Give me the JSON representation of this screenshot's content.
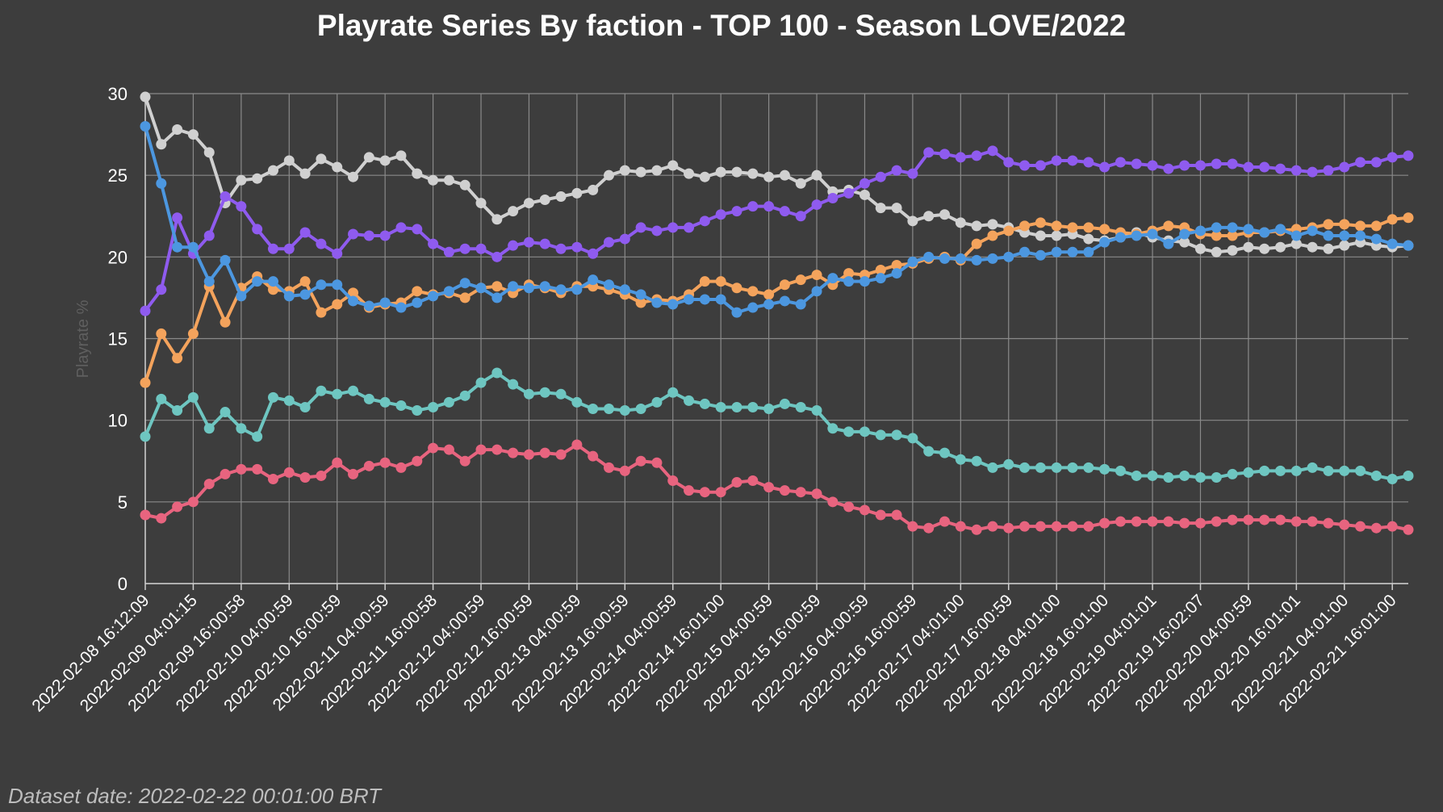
{
  "chart_data": {
    "type": "line",
    "title": "Playrate Series By faction - TOP 100 - Season LOVE/2022",
    "ylabel": "Playrate %",
    "xlabel": "",
    "ylim": [
      0,
      30
    ],
    "yticks": [
      0,
      5,
      10,
      15,
      20,
      25,
      30
    ],
    "point_count": 80,
    "x_tick_labels": [
      "2022-02-08 16:12:09",
      "2022-02-09 04:01:15",
      "2022-02-09 16:00:58",
      "2022-02-10 04:00:59",
      "2022-02-10 16:00:59",
      "2022-02-11 04:00:59",
      "2022-02-11 16:00:58",
      "2022-02-12 04:00:59",
      "2022-02-12 16:00:59",
      "2022-02-13 04:00:59",
      "2022-02-13 16:00:59",
      "2022-02-14 04:00:59",
      "2022-02-14 16:01:00",
      "2022-02-15 04:00:59",
      "2022-02-15 16:00:59",
      "2022-02-16 04:00:59",
      "2022-02-16 16:00:59",
      "2022-02-17 04:01:00",
      "2022-02-17 16:00:59",
      "2022-02-18 04:01:00",
      "2022-02-18 16:01:00",
      "2022-02-19 04:01:01",
      "2022-02-19 16:02:07",
      "2022-02-20 04:00:59",
      "2022-02-20 16:01:01",
      "2022-02-21 04:01:00",
      "2022-02-21 16:01:00"
    ],
    "x_tick_indices": [
      0,
      3,
      6,
      9,
      12,
      15,
      18,
      21,
      24,
      27,
      30,
      33,
      36,
      39,
      42,
      45,
      48,
      51,
      54,
      57,
      60,
      63,
      66,
      69,
      72,
      75,
      78
    ],
    "grid": true,
    "series": [
      {
        "name": "Gray",
        "color": "#d0d0d0",
        "values": [
          29.8,
          26.9,
          27.8,
          27.5,
          26.4,
          23.3,
          24.7,
          24.8,
          25.3,
          25.9,
          25.1,
          26.0,
          25.5,
          24.9,
          26.1,
          25.9,
          26.2,
          25.1,
          24.7,
          24.7,
          24.4,
          23.3,
          22.3,
          22.8,
          23.3,
          23.5,
          23.7,
          23.9,
          24.1,
          25.0,
          25.3,
          25.2,
          25.3,
          25.6,
          25.1,
          24.9,
          25.2,
          25.2,
          25.1,
          24.9,
          25.0,
          24.5,
          25.0,
          24.0,
          24.1,
          23.8,
          23.0,
          23.0,
          22.2,
          22.5,
          22.6,
          22.1,
          21.9,
          22.0,
          21.8,
          21.5,
          21.3,
          21.3,
          21.4,
          21.1,
          21.0,
          21.2,
          21.5,
          21.2,
          21.0,
          20.9,
          20.5,
          20.3,
          20.4,
          20.6,
          20.5,
          20.6,
          20.8,
          20.6,
          20.5,
          20.7,
          20.9,
          20.7,
          20.6,
          20.7
        ]
      },
      {
        "name": "Purple",
        "color": "#8f5bef",
        "values": [
          16.7,
          18.0,
          22.4,
          20.2,
          21.3,
          23.7,
          23.1,
          21.7,
          20.5,
          20.5,
          21.5,
          20.8,
          20.2,
          21.4,
          21.3,
          21.3,
          21.8,
          21.7,
          20.8,
          20.3,
          20.5,
          20.5,
          20.0,
          20.7,
          20.9,
          20.8,
          20.5,
          20.6,
          20.2,
          20.9,
          21.1,
          21.8,
          21.6,
          21.8,
          21.8,
          22.2,
          22.6,
          22.8,
          23.1,
          23.1,
          22.8,
          22.5,
          23.2,
          23.6,
          23.9,
          24.5,
          24.9,
          25.3,
          25.1,
          26.4,
          26.3,
          26.1,
          26.2,
          26.5,
          25.8,
          25.6,
          25.6,
          25.9,
          25.9,
          25.8,
          25.5,
          25.8,
          25.7,
          25.6,
          25.4,
          25.6,
          25.6,
          25.7,
          25.7,
          25.5,
          25.5,
          25.4,
          25.3,
          25.2,
          25.3,
          25.5,
          25.8,
          25.8,
          26.1,
          26.2
        ]
      },
      {
        "name": "Orange",
        "color": "#f4a35c",
        "values": [
          12.3,
          15.3,
          13.8,
          15.3,
          18.2,
          16.0,
          18.1,
          18.8,
          18.0,
          17.9,
          18.5,
          16.6,
          17.1,
          17.8,
          16.9,
          17.1,
          17.2,
          17.9,
          17.7,
          17.8,
          17.5,
          18.1,
          18.2,
          17.8,
          18.3,
          18.1,
          17.8,
          18.2,
          18.2,
          18.0,
          17.7,
          17.2,
          17.4,
          17.3,
          17.7,
          18.5,
          18.5,
          18.1,
          17.9,
          17.7,
          18.3,
          18.6,
          18.9,
          18.3,
          19.0,
          18.9,
          19.2,
          19.5,
          19.6,
          19.9,
          20.0,
          19.8,
          20.8,
          21.3,
          21.6,
          21.9,
          22.1,
          21.9,
          21.8,
          21.8,
          21.7,
          21.5,
          21.4,
          21.6,
          21.9,
          21.8,
          21.4,
          21.3,
          21.3,
          21.5,
          21.5,
          21.6,
          21.7,
          21.8,
          22.0,
          22.0,
          21.9,
          21.9,
          22.3,
          22.4
        ]
      },
      {
        "name": "Blue",
        "color": "#4c97e0",
        "values": [
          28.0,
          24.5,
          20.6,
          20.6,
          18.5,
          19.8,
          17.6,
          18.5,
          18.5,
          17.6,
          17.7,
          18.3,
          18.3,
          17.3,
          17.0,
          17.2,
          16.9,
          17.2,
          17.6,
          17.9,
          18.4,
          18.1,
          17.5,
          18.2,
          18.1,
          18.2,
          18.0,
          18.0,
          18.6,
          18.3,
          18.0,
          17.7,
          17.2,
          17.1,
          17.4,
          17.4,
          17.4,
          16.6,
          16.9,
          17.1,
          17.3,
          17.1,
          17.9,
          18.7,
          18.5,
          18.5,
          18.7,
          19.0,
          19.7,
          20.0,
          19.9,
          19.9,
          19.8,
          19.9,
          20.0,
          20.3,
          20.1,
          20.3,
          20.3,
          20.3,
          20.9,
          21.2,
          21.3,
          21.4,
          20.8,
          21.4,
          21.6,
          21.8,
          21.8,
          21.7,
          21.5,
          21.7,
          21.3,
          21.6,
          21.3,
          21.3,
          21.3,
          21.1,
          20.8,
          20.7
        ]
      },
      {
        "name": "Teal",
        "color": "#6ec6c1",
        "values": [
          9.0,
          11.3,
          10.6,
          11.4,
          9.5,
          10.5,
          9.5,
          9.0,
          11.4,
          11.2,
          10.8,
          11.8,
          11.6,
          11.8,
          11.3,
          11.1,
          10.9,
          10.6,
          10.8,
          11.1,
          11.5,
          12.3,
          12.9,
          12.2,
          11.6,
          11.7,
          11.6,
          11.1,
          10.7,
          10.7,
          10.6,
          10.7,
          11.1,
          11.7,
          11.2,
          11.0,
          10.8,
          10.8,
          10.8,
          10.7,
          11.0,
          10.8,
          10.6,
          9.5,
          9.3,
          9.3,
          9.1,
          9.1,
          8.9,
          8.1,
          8.0,
          7.6,
          7.5,
          7.1,
          7.3,
          7.1,
          7.1,
          7.1,
          7.1,
          7.1,
          7.0,
          6.9,
          6.6,
          6.6,
          6.5,
          6.6,
          6.5,
          6.5,
          6.7,
          6.8,
          6.9,
          6.9,
          6.9,
          7.1,
          6.9,
          6.9,
          6.9,
          6.6,
          6.4,
          6.6
        ]
      },
      {
        "name": "Pink",
        "color": "#e8647f",
        "values": [
          4.2,
          4.0,
          4.7,
          5.0,
          6.1,
          6.7,
          7.0,
          7.0,
          6.4,
          6.8,
          6.5,
          6.6,
          7.4,
          6.7,
          7.2,
          7.4,
          7.1,
          7.5,
          8.3,
          8.2,
          7.5,
          8.2,
          8.2,
          8.0,
          7.9,
          8.0,
          7.9,
          8.5,
          7.8,
          7.1,
          6.9,
          7.5,
          7.4,
          6.3,
          5.7,
          5.6,
          5.6,
          6.2,
          6.3,
          5.9,
          5.7,
          5.6,
          5.5,
          5.0,
          4.7,
          4.5,
          4.2,
          4.2,
          3.5,
          3.4,
          3.8,
          3.5,
          3.3,
          3.5,
          3.4,
          3.5,
          3.5,
          3.5,
          3.5,
          3.5,
          3.7,
          3.8,
          3.8,
          3.8,
          3.8,
          3.7,
          3.7,
          3.8,
          3.9,
          3.9,
          3.9,
          3.9,
          3.8,
          3.8,
          3.7,
          3.6,
          3.5,
          3.4,
          3.5,
          3.3
        ]
      }
    ]
  },
  "footer": {
    "dataset_date": "Dataset date: 2022-02-22 00:01:00 BRT"
  }
}
